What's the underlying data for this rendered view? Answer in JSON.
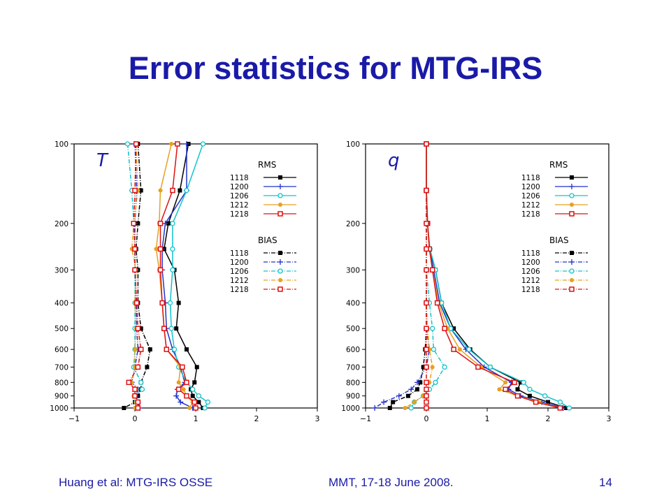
{
  "slide": {
    "title": "Error statistics for MTG-IRS",
    "footer_left": "Huang et al: MTG-IRS OSSE",
    "footer_center": "MMT, 17-18 June 2008.",
    "page_number": "14"
  },
  "chart_data": [
    {
      "type": "line",
      "panel_label": "T",
      "xlim": [
        -1,
        3
      ],
      "ylim": [
        1000,
        100
      ],
      "y_scale": "log",
      "x_ticks": [
        "−1",
        "0",
        "1",
        "2",
        "3"
      ],
      "y_ticks": [
        100,
        200,
        300,
        400,
        500,
        600,
        700,
        800,
        900,
        1000
      ],
      "legend": {
        "rms_title": "RMS",
        "bias_title": "BIAS",
        "labels": [
          "1118",
          "1200",
          "1206",
          "1212",
          "1218"
        ]
      },
      "levels": [
        100,
        150,
        200,
        250,
        300,
        400,
        500,
        600,
        700,
        800,
        850,
        900,
        950,
        1000
      ],
      "series": [
        {
          "name": "1118",
          "kind": "rms",
          "color": "#000000",
          "marker": "square",
          "values": [
            0.88,
            0.74,
            0.55,
            0.48,
            0.65,
            0.72,
            0.68,
            0.85,
            1.02,
            0.98,
            0.92,
            0.95,
            1.05,
            1.12
          ]
        },
        {
          "name": "1200",
          "kind": "rms",
          "color": "#2233cc",
          "marker": "plus",
          "values": [
            0.85,
            0.85,
            0.5,
            0.45,
            0.45,
            0.5,
            0.52,
            0.62,
            0.75,
            0.82,
            0.7,
            0.68,
            0.75,
            0.95
          ]
        },
        {
          "name": "1206",
          "kind": "rms",
          "color": "#11c4cc",
          "marker": "circle",
          "values": [
            1.12,
            0.85,
            0.62,
            0.62,
            0.62,
            0.58,
            0.6,
            0.65,
            0.72,
            0.85,
            0.95,
            1.05,
            1.2,
            1.15
          ]
        },
        {
          "name": "1212",
          "kind": "rms",
          "color": "#e8a020",
          "marker": "dot",
          "values": [
            0.6,
            0.42,
            0.4,
            0.35,
            0.4,
            0.45,
            0.48,
            0.52,
            0.75,
            0.72,
            0.8,
            0.85,
            0.95,
            0.9
          ]
        },
        {
          "name": "1218",
          "kind": "rms",
          "color": "#dd1111",
          "marker": "open-square",
          "values": [
            0.7,
            0.62,
            0.42,
            0.42,
            0.42,
            0.45,
            0.48,
            0.52,
            0.78,
            0.85,
            0.72,
            0.85,
            0.98,
            1.0
          ]
        },
        {
          "name": "1118",
          "kind": "bias",
          "color": "#000000",
          "marker": "square",
          "values": [
            0.05,
            0.1,
            0.05,
            0.02,
            0.05,
            0.05,
            0.1,
            0.25,
            0.2,
            0.1,
            0.1,
            0.05,
            0.0,
            -0.18
          ]
        },
        {
          "name": "1200",
          "kind": "bias",
          "color": "#2233cc",
          "marker": "plus",
          "values": [
            0.0,
            0.03,
            0.0,
            0.0,
            0.0,
            0.02,
            0.03,
            0.05,
            0.0,
            -0.05,
            0.05,
            0.02,
            0.05,
            0.08
          ]
        },
        {
          "name": "1206",
          "kind": "bias",
          "color": "#11c4cc",
          "marker": "circle",
          "values": [
            -0.12,
            -0.05,
            -0.02,
            0.0,
            0.0,
            0.0,
            0.0,
            0.0,
            -0.02,
            0.1,
            0.12,
            0.0,
            0.02,
            0.05
          ]
        },
        {
          "name": "1212",
          "kind": "bias",
          "color": "#e8a020",
          "marker": "dot",
          "values": [
            0.02,
            0.05,
            -0.02,
            -0.05,
            0.02,
            0.0,
            0.02,
            0.0,
            0.0,
            -0.05,
            0.02,
            -0.02,
            0.02,
            0.0
          ]
        },
        {
          "name": "1218",
          "kind": "bias",
          "color": "#dd1111",
          "marker": "open-square",
          "values": [
            0.02,
            0.0,
            -0.02,
            0.0,
            0.0,
            0.03,
            0.05,
            0.1,
            0.05,
            -0.1,
            0.0,
            0.0,
            0.05,
            0.05
          ]
        }
      ]
    },
    {
      "type": "line",
      "panel_label": "q",
      "xlim": [
        -1,
        3
      ],
      "ylim": [
        1000,
        100
      ],
      "y_scale": "log",
      "x_ticks": [
        "−1",
        "0",
        "1",
        "2",
        "3"
      ],
      "y_ticks": [
        100,
        200,
        300,
        400,
        500,
        600,
        700,
        800,
        900,
        1000
      ],
      "legend": {
        "rms_title": "RMS",
        "bias_title": "BIAS",
        "labels": [
          "1118",
          "1200",
          "1206",
          "1212",
          "1218"
        ]
      },
      "levels": [
        100,
        150,
        200,
        250,
        300,
        400,
        500,
        600,
        700,
        800,
        850,
        900,
        950,
        1000
      ],
      "series": [
        {
          "name": "1118",
          "kind": "rms",
          "color": "#000000",
          "marker": "square",
          "values": [
            0.0,
            0.0,
            0.02,
            0.05,
            0.15,
            0.25,
            0.45,
            0.72,
            1.05,
            1.55,
            1.5,
            1.7,
            2.0,
            2.3
          ]
        },
        {
          "name": "1200",
          "kind": "rms",
          "color": "#2233cc",
          "marker": "plus",
          "values": [
            0.0,
            0.0,
            0.02,
            0.05,
            0.12,
            0.22,
            0.4,
            0.65,
            0.95,
            1.4,
            1.35,
            1.55,
            1.9,
            2.25
          ]
        },
        {
          "name": "1206",
          "kind": "rms",
          "color": "#11c4cc",
          "marker": "circle",
          "values": [
            0.0,
            0.0,
            0.02,
            0.06,
            0.15,
            0.25,
            0.4,
            0.7,
            1.05,
            1.6,
            1.7,
            1.95,
            2.2,
            2.35
          ]
        },
        {
          "name": "1212",
          "kind": "rms",
          "color": "#e8a020",
          "marker": "dot",
          "values": [
            0.0,
            0.0,
            0.02,
            0.05,
            0.1,
            0.2,
            0.35,
            0.55,
            0.9,
            1.3,
            1.2,
            1.5,
            1.85,
            2.2
          ]
        },
        {
          "name": "1218",
          "kind": "rms",
          "color": "#dd1111",
          "marker": "open-square",
          "values": [
            0.0,
            0.0,
            0.02,
            0.05,
            0.1,
            0.18,
            0.3,
            0.45,
            0.85,
            1.45,
            1.3,
            1.5,
            1.8,
            2.2
          ]
        },
        {
          "name": "1118",
          "kind": "bias",
          "color": "#000000",
          "marker": "square",
          "values": [
            0.0,
            0.0,
            0.0,
            0.0,
            0.0,
            0.0,
            0.0,
            -0.02,
            -0.05,
            -0.1,
            -0.15,
            -0.3,
            -0.55,
            -0.6
          ]
        },
        {
          "name": "1200",
          "kind": "bias",
          "color": "#2233cc",
          "marker": "plus",
          "values": [
            0.0,
            0.0,
            0.0,
            0.0,
            0.0,
            0.0,
            0.0,
            0.05,
            0.0,
            -0.15,
            -0.25,
            -0.45,
            -0.7,
            -0.85
          ]
        },
        {
          "name": "1206",
          "kind": "bias",
          "color": "#11c4cc",
          "marker": "circle",
          "values": [
            0.0,
            0.0,
            0.0,
            0.0,
            0.0,
            0.05,
            0.1,
            0.12,
            0.3,
            0.15,
            0.05,
            -0.05,
            -0.2,
            -0.25
          ]
        },
        {
          "name": "1212",
          "kind": "bias",
          "color": "#e8a020",
          "marker": "dot",
          "values": [
            0.0,
            0.0,
            0.0,
            0.0,
            0.0,
            0.0,
            0.02,
            0.05,
            0.1,
            0.05,
            0.0,
            -0.05,
            -0.2,
            -0.35
          ]
        },
        {
          "name": "1218",
          "kind": "bias",
          "color": "#dd1111",
          "marker": "open-square",
          "values": [
            0.0,
            0.0,
            0.0,
            0.0,
            0.0,
            0.0,
            0.0,
            0.0,
            0.0,
            0.0,
            0.0,
            0.0,
            0.0,
            0.0
          ]
        }
      ]
    }
  ]
}
